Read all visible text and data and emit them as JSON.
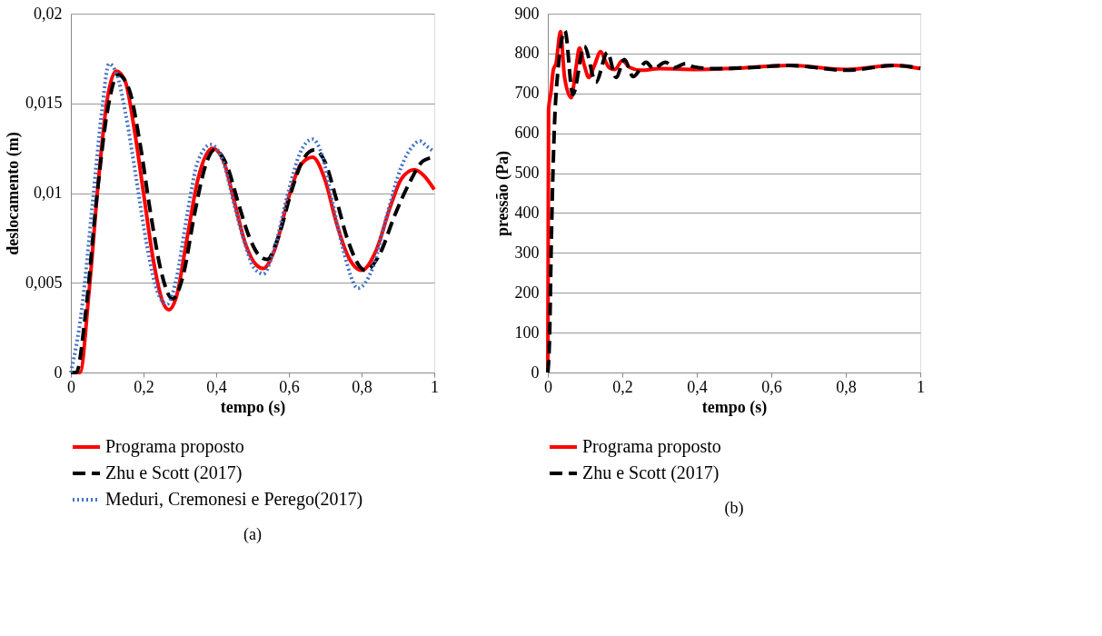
{
  "chart_data": [
    {
      "type": "line",
      "xlabel": "tempo (s)",
      "ylabel": "deslocamento (m)",
      "annotations": [
        "(a)"
      ],
      "legend": "bottom",
      "grid": "y",
      "xlim": [
        0,
        1
      ],
      "ylim": [
        0,
        0.02
      ],
      "xticks": [
        0,
        {
          "value": 0.2,
          "label": "0,2"
        },
        {
          "value": 0.4,
          "label": "0,4"
        },
        {
          "value": 0.6,
          "label": "0,6"
        },
        {
          "value": 0.8,
          "label": "0,8"
        },
        1
      ],
      "yticks": [
        0,
        {
          "value": 0.005,
          "label": "0,005"
        },
        {
          "value": 0.01,
          "label": "0,01"
        },
        {
          "value": 0.015,
          "label": "0,015"
        },
        {
          "value": 0.02,
          "label": "0,02"
        }
      ],
      "series": [
        {
          "name": "Programa proposto",
          "color": "#ff0000",
          "line_style": "solid",
          "x": [
            0,
            0.025,
            0.05,
            0.075,
            0.1,
            0.125,
            0.15,
            0.175,
            0.2,
            0.225,
            0.25,
            0.27,
            0.29,
            0.32,
            0.35,
            0.39,
            0.42,
            0.45,
            0.48,
            0.51,
            0.53,
            0.56,
            0.6,
            0.63,
            0.665,
            0.7,
            0.73,
            0.76,
            0.8,
            0.84,
            0.88,
            0.91,
            0.945,
            0.97,
            1
          ],
          "values": [
            0,
            0,
            0.0045,
            0.0105,
            0.0152,
            0.0168,
            0.0162,
            0.0135,
            0.01,
            0.0065,
            0.0041,
            0.0035,
            0.0042,
            0.0075,
            0.0108,
            0.0125,
            0.0118,
            0.0095,
            0.0072,
            0.006,
            0.0058,
            0.0068,
            0.0098,
            0.0115,
            0.012,
            0.0107,
            0.0084,
            0.0066,
            0.0057,
            0.0068,
            0.0093,
            0.0108,
            0.0113,
            0.011,
            0.0102
          ]
        },
        {
          "name": "Zhu e Scott (2017)",
          "color": "#000000",
          "line_style": "dashed",
          "x": [
            0,
            0.015,
            0.04,
            0.07,
            0.1,
            0.13,
            0.16,
            0.19,
            0.22,
            0.25,
            0.28,
            0.31,
            0.34,
            0.37,
            0.395,
            0.43,
            0.46,
            0.49,
            0.515,
            0.54,
            0.57,
            0.61,
            0.64,
            0.67,
            0.7,
            0.73,
            0.76,
            0.81,
            0.85,
            0.89,
            0.93,
            0.97,
            1
          ],
          "values": [
            0,
            0,
            0.0032,
            0.0095,
            0.0145,
            0.0166,
            0.0158,
            0.0128,
            0.0088,
            0.0055,
            0.0041,
            0.0055,
            0.0088,
            0.0115,
            0.0124,
            0.0115,
            0.0095,
            0.0076,
            0.0066,
            0.0063,
            0.0075,
            0.0103,
            0.0119,
            0.0124,
            0.0117,
            0.0097,
            0.0075,
            0.0057,
            0.0066,
            0.0087,
            0.0105,
            0.0118,
            0.012
          ]
        },
        {
          "name": "Meduri, Cremonesi e Perego(2017)",
          "color": "#4472c4",
          "line_style": "dotted",
          "x": [
            0,
            0.03,
            0.06,
            0.085,
            0.105,
            0.125,
            0.15,
            0.18,
            0.21,
            0.24,
            0.265,
            0.29,
            0.32,
            0.35,
            0.385,
            0.42,
            0.45,
            0.48,
            0.505,
            0.53,
            0.56,
            0.6,
            0.63,
            0.665,
            0.69,
            0.72,
            0.75,
            0.79,
            0.83,
            0.87,
            0.91,
            0.94,
            0.96,
            0.98,
            1
          ],
          "values": [
            0,
            0.0035,
            0.0095,
            0.0145,
            0.0172,
            0.0167,
            0.0145,
            0.0108,
            0.007,
            0.0044,
            0.0038,
            0.0052,
            0.0088,
            0.0118,
            0.0127,
            0.0117,
            0.0093,
            0.0071,
            0.0058,
            0.0055,
            0.0069,
            0.0102,
            0.0122,
            0.013,
            0.0122,
            0.0095,
            0.0068,
            0.0047,
            0.0058,
            0.0088,
            0.0115,
            0.0126,
            0.0129,
            0.0126,
            0.0123
          ]
        }
      ]
    },
    {
      "type": "line",
      "xlabel": "tempo (s)",
      "ylabel": "pressão (Pa)",
      "annotations": [
        "(b)"
      ],
      "legend": "bottom",
      "grid": "y",
      "xlim": [
        0,
        1
      ],
      "ylim": [
        0,
        900
      ],
      "xticks": [
        0,
        {
          "value": 0.2,
          "label": "0,2"
        },
        {
          "value": 0.4,
          "label": "0,4"
        },
        {
          "value": 0.6,
          "label": "0,6"
        },
        {
          "value": 0.8,
          "label": "0,8"
        },
        1
      ],
      "yticks": [
        0,
        100,
        200,
        300,
        400,
        500,
        600,
        700,
        800,
        900
      ],
      "series": [
        {
          "name": "Programa proposto",
          "color": "#ff0000",
          "line_style": "solid",
          "x": [
            0,
            0.002,
            0.008,
            0.015,
            0.022,
            0.034,
            0.045,
            0.063,
            0.075,
            0.085,
            0.098,
            0.11,
            0.125,
            0.142,
            0.155,
            0.164,
            0.18,
            0.2,
            0.22,
            0.25,
            0.3,
            0.4,
            0.5,
            0.65,
            0.8,
            0.93,
            1
          ],
          "values": [
            0,
            660,
            700,
            760,
            775,
            855,
            740,
            689,
            760,
            814,
            770,
            740,
            770,
            805,
            780,
            765,
            760,
            782,
            765,
            758,
            762,
            760,
            763,
            770,
            760,
            770,
            762
          ]
        },
        {
          "name": "Zhu e Scott (2017)",
          "color": "#000000",
          "line_style": "dashed",
          "x": [
            0,
            0.005,
            0.009,
            0.017,
            0.028,
            0.046,
            0.067,
            0.098,
            0.129,
            0.16,
            0.183,
            0.206,
            0.229,
            0.264,
            0.283,
            0.316,
            0.339,
            0.37,
            0.39,
            0.45,
            0.55,
            0.65,
            0.8,
            0.93,
            1
          ],
          "values": [
            0,
            100,
            311,
            599,
            765,
            857,
            697,
            818,
            728,
            803,
            740,
            785,
            742,
            778,
            762,
            778,
            764,
            775,
            767,
            762,
            765,
            770,
            758,
            770,
            763
          ]
        }
      ]
    }
  ]
}
